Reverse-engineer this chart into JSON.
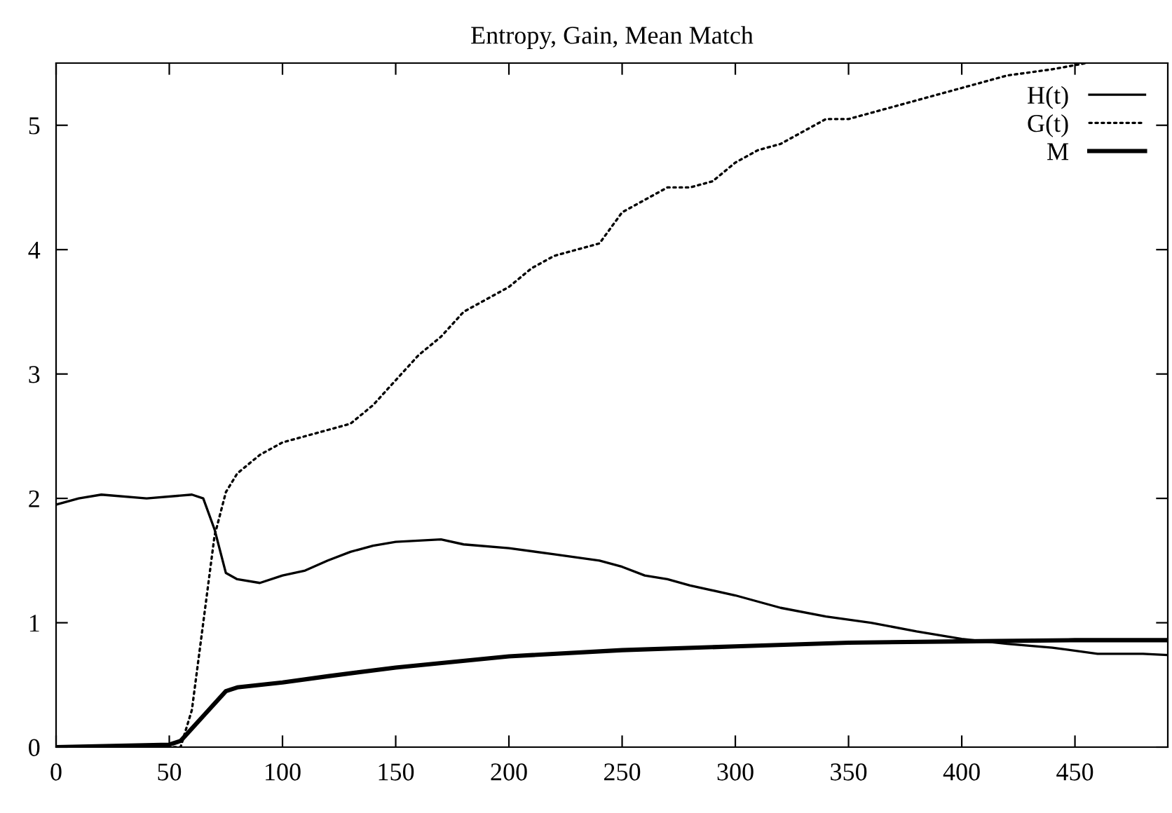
{
  "chart_data": {
    "type": "line",
    "title": "Entropy, Gain, Mean Match",
    "xlim": [
      0,
      491
    ],
    "xticks": [
      0,
      50,
      100,
      150,
      200,
      250,
      300,
      350,
      400,
      450
    ],
    "ylim": [
      0,
      5.5
    ],
    "yticks": [
      0,
      1,
      2,
      3,
      4,
      5
    ],
    "grid": false,
    "legend": "top right",
    "series": [
      {
        "name": "H(t)",
        "color": "#000000",
        "line_style": "solid",
        "x": [
          0,
          10,
          20,
          40,
          60,
          65,
          70,
          75,
          80,
          90,
          100,
          110,
          120,
          130,
          140,
          150,
          170,
          180,
          200,
          220,
          240,
          250,
          260,
          270,
          280,
          300,
          320,
          340,
          360,
          380,
          400,
          420,
          440,
          460,
          480,
          491
        ],
        "values": [
          1.95,
          2.0,
          2.03,
          2.0,
          2.03,
          2.0,
          1.75,
          1.4,
          1.35,
          1.32,
          1.38,
          1.42,
          1.5,
          1.57,
          1.62,
          1.65,
          1.67,
          1.63,
          1.6,
          1.55,
          1.5,
          1.45,
          1.38,
          1.35,
          1.3,
          1.22,
          1.12,
          1.05,
          1.0,
          0.93,
          0.87,
          0.83,
          0.8,
          0.75,
          0.75,
          0.74
        ]
      },
      {
        "name": "G(t)",
        "color": "#000000",
        "line_style": "dotted",
        "x": [
          0,
          55,
          60,
          65,
          70,
          75,
          80,
          90,
          100,
          120,
          130,
          140,
          150,
          160,
          170,
          180,
          190,
          200,
          210,
          220,
          230,
          240,
          250,
          260,
          270,
          280,
          290,
          300,
          310,
          320,
          330,
          340,
          350,
          360,
          370,
          380,
          390,
          400,
          420,
          440,
          455
        ],
        "values": [
          0,
          0,
          0.3,
          1.0,
          1.7,
          2.05,
          2.2,
          2.35,
          2.45,
          2.55,
          2.6,
          2.75,
          2.95,
          3.15,
          3.3,
          3.5,
          3.6,
          3.7,
          3.85,
          3.95,
          4.0,
          4.05,
          4.3,
          4.4,
          4.5,
          4.5,
          4.55,
          4.7,
          4.8,
          4.85,
          4.95,
          5.05,
          5.05,
          5.1,
          5.15,
          5.2,
          5.25,
          5.3,
          5.4,
          5.45,
          5.5
        ]
      },
      {
        "name": "M",
        "color": "#000000",
        "line_style": "solid",
        "x": [
          0,
          50,
          55,
          60,
          70,
          75,
          80,
          100,
          120,
          150,
          200,
          250,
          300,
          350,
          400,
          450,
          491
        ],
        "values": [
          0,
          0.02,
          0.05,
          0.15,
          0.35,
          0.45,
          0.48,
          0.52,
          0.57,
          0.64,
          0.73,
          0.78,
          0.81,
          0.84,
          0.85,
          0.86,
          0.86
        ]
      }
    ]
  }
}
